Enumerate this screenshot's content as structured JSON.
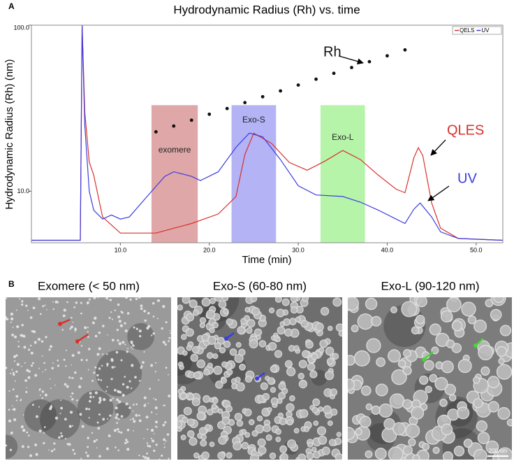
{
  "panel_labels": [
    "A",
    "B"
  ],
  "chart_data": {
    "type": "line",
    "title": "Hydrodynamic Radius (Rh) vs. time",
    "x_label": "Time (min)",
    "y_label": "Hydrodynamic Radius (Rh) (nm)",
    "log_y": true,
    "xlim": [
      0,
      53
    ],
    "ylim": [
      4.9,
      100
    ],
    "xticks": [
      {
        "value": 10,
        "label": "10.0"
      },
      {
        "value": 20,
        "label": "20.0"
      },
      {
        "value": 30,
        "label": "30.0"
      },
      {
        "value": 40,
        "label": "40.0"
      },
      {
        "value": 50,
        "label": "50.0"
      }
    ],
    "yticks": [
      {
        "value": 10,
        "label": "10.0"
      },
      {
        "value": 100,
        "label": "100.0"
      }
    ],
    "legend": "top-right",
    "series": [
      {
        "name": "QELS",
        "color": "#d9312b",
        "x": [
          0,
          5.5,
          5.7,
          6.0,
          6.5,
          7,
          8,
          10,
          14,
          18,
          21,
          23,
          24,
          25,
          27,
          29,
          31,
          33,
          35,
          37,
          39,
          41,
          42,
          43,
          43.5,
          44,
          45,
          46,
          48,
          53
        ],
        "values": [
          5.07,
          5.07,
          100,
          30,
          15,
          12.5,
          7,
          5.6,
          5.6,
          6.4,
          7.3,
          9.3,
          16.7,
          22.4,
          19.4,
          14.9,
          13.4,
          15.2,
          17.6,
          15.5,
          12.5,
          10.3,
          9.8,
          15.9,
          18.3,
          16.4,
          8.5,
          6,
          5.2,
          5.07
        ]
      },
      {
        "name": "UV",
        "color": "#3d3de0",
        "x": [
          0,
          5.5,
          5.7,
          6.0,
          6.5,
          7,
          8,
          9,
          10,
          11,
          13,
          15,
          16,
          18,
          19,
          21,
          23,
          24.5,
          26,
          28,
          30,
          32,
          35,
          37,
          39,
          41,
          42,
          43,
          43.7,
          45,
          46,
          48,
          53
        ],
        "values": [
          5.07,
          5.07,
          100,
          25,
          10,
          7.7,
          6.8,
          7.2,
          6.8,
          7,
          9.3,
          12.3,
          13.1,
          12.3,
          11.6,
          13.1,
          18.4,
          22.4,
          21.3,
          15.5,
          10.8,
          9.5,
          9.3,
          8.6,
          7.7,
          6.8,
          6.4,
          7.8,
          8.5,
          7,
          5.7,
          5.2,
          5.07
        ]
      },
      {
        "name": "Rh",
        "color": "#111111",
        "type": "scatter",
        "x": [
          14,
          16,
          18,
          20,
          22,
          24,
          26,
          28,
          30,
          32,
          34,
          36,
          38,
          40,
          42
        ],
        "values": [
          22.8,
          24.7,
          26.8,
          29.1,
          31.5,
          34.2,
          37.1,
          40.2,
          43.6,
          47.3,
          51.3,
          55.6,
          60.3,
          65.4,
          71
        ]
      }
    ],
    "shaded_regions": [
      {
        "label": "exomere",
        "start": 13.5,
        "end": 18.7,
        "top": 33,
        "color": "#d48a8a"
      },
      {
        "label": "Exo-S",
        "start": 22.5,
        "end": 27.5,
        "top": 33,
        "color": "#9a9af2"
      },
      {
        "label": "Exo-L",
        "start": 32.5,
        "end": 37.5,
        "top": 33,
        "color": "#9ef08e"
      }
    ],
    "annotations": [
      {
        "text": "Rh",
        "color": "#111111"
      },
      {
        "text": "QLES",
        "color": "#d9312b"
      },
      {
        "text": "UV",
        "color": "#3d3de0"
      }
    ]
  },
  "micrographs": [
    {
      "title": "Exomere (< 50 nm)"
    },
    {
      "title": "Exo-S (60-80 nm)"
    },
    {
      "title": "Exo-L (90-120 nm)"
    }
  ],
  "scale_bar": "200 nm"
}
